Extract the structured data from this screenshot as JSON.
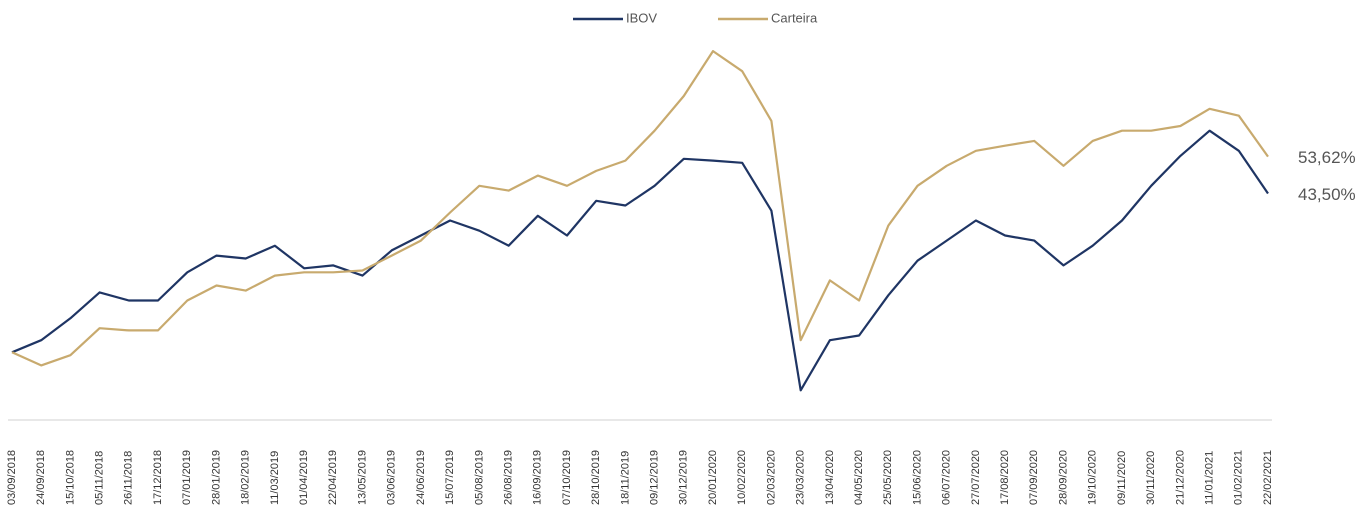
{
  "chart_data": {
    "type": "line",
    "categories": [
      "03/09/2018",
      "24/09/2018",
      "15/10/2018",
      "05/11/2018",
      "26/11/2018",
      "17/12/2018",
      "07/01/2019",
      "28/01/2019",
      "18/02/2019",
      "11/03/2019",
      "01/04/2019",
      "22/04/2019",
      "13/05/2019",
      "03/06/2019",
      "24/06/2019",
      "15/07/2019",
      "05/08/2019",
      "26/08/2019",
      "16/09/2019",
      "07/10/2019",
      "28/10/2019",
      "18/11/2019",
      "09/12/2019",
      "30/12/2019",
      "20/01/2020",
      "10/02/2020",
      "02/03/2020",
      "23/03/2020",
      "13/04/2020",
      "04/05/2020",
      "25/05/2020",
      "15/06/2020",
      "06/07/2020",
      "27/07/2020",
      "17/08/2020",
      "07/09/2020",
      "28/09/2020",
      "19/10/2020",
      "09/11/2020",
      "30/11/2020",
      "21/12/2020",
      "11/01/2021",
      "01/02/2021",
      "22/02/2021"
    ],
    "series": [
      {
        "name": "IBOV",
        "color": "#1f3564",
        "values": [
          0,
          3.3,
          9.3,
          16.4,
          14.2,
          14.2,
          21.9,
          26.5,
          25.7,
          29.2,
          23.0,
          23.8,
          21.0,
          27.9,
          32.0,
          36.1,
          33.3,
          29.2,
          37.4,
          32.0,
          41.5,
          40.2,
          45.6,
          53.0,
          52.5,
          51.9,
          38.8,
          -10.4,
          3.3,
          4.6,
          15.6,
          25.1,
          30.6,
          36.1,
          32.0,
          30.6,
          23.8,
          29.2,
          36.1,
          45.6,
          53.8,
          60.7,
          55.2,
          43.5
        ],
        "value_labels": [
          null,
          null,
          null,
          null,
          null,
          null,
          null,
          null,
          null,
          null,
          null,
          null,
          null,
          null,
          null,
          null,
          null,
          null,
          null,
          null,
          null,
          null,
          null,
          null,
          null,
          null,
          null,
          null,
          null,
          null,
          null,
          null,
          null,
          null,
          null,
          null,
          null,
          null,
          null,
          null,
          null,
          null,
          null,
          "43,50%"
        ]
      },
      {
        "name": "Carteira",
        "color": "#c8aa6e",
        "values": [
          0,
          -3.6,
          -0.8,
          6.6,
          6.0,
          6.0,
          14.2,
          18.3,
          16.9,
          21.0,
          21.9,
          21.9,
          22.4,
          26.5,
          30.6,
          38.3,
          45.6,
          44.3,
          48.4,
          45.6,
          49.7,
          52.5,
          60.7,
          70.2,
          82.5,
          77.0,
          63.4,
          3.3,
          19.7,
          14.2,
          34.7,
          45.6,
          51.1,
          55.2,
          56.6,
          57.9,
          51.1,
          57.9,
          60.7,
          60.7,
          62.0,
          66.7,
          64.8,
          53.62
        ],
        "value_labels": [
          null,
          null,
          null,
          null,
          null,
          null,
          null,
          null,
          null,
          null,
          null,
          null,
          null,
          null,
          null,
          null,
          null,
          null,
          null,
          null,
          null,
          null,
          null,
          null,
          null,
          null,
          null,
          null,
          null,
          null,
          null,
          null,
          null,
          null,
          null,
          null,
          null,
          null,
          null,
          null,
          null,
          null,
          null,
          "53,62%"
        ]
      }
    ],
    "ylim": [
      -18,
      85
    ],
    "legend": "top"
  }
}
